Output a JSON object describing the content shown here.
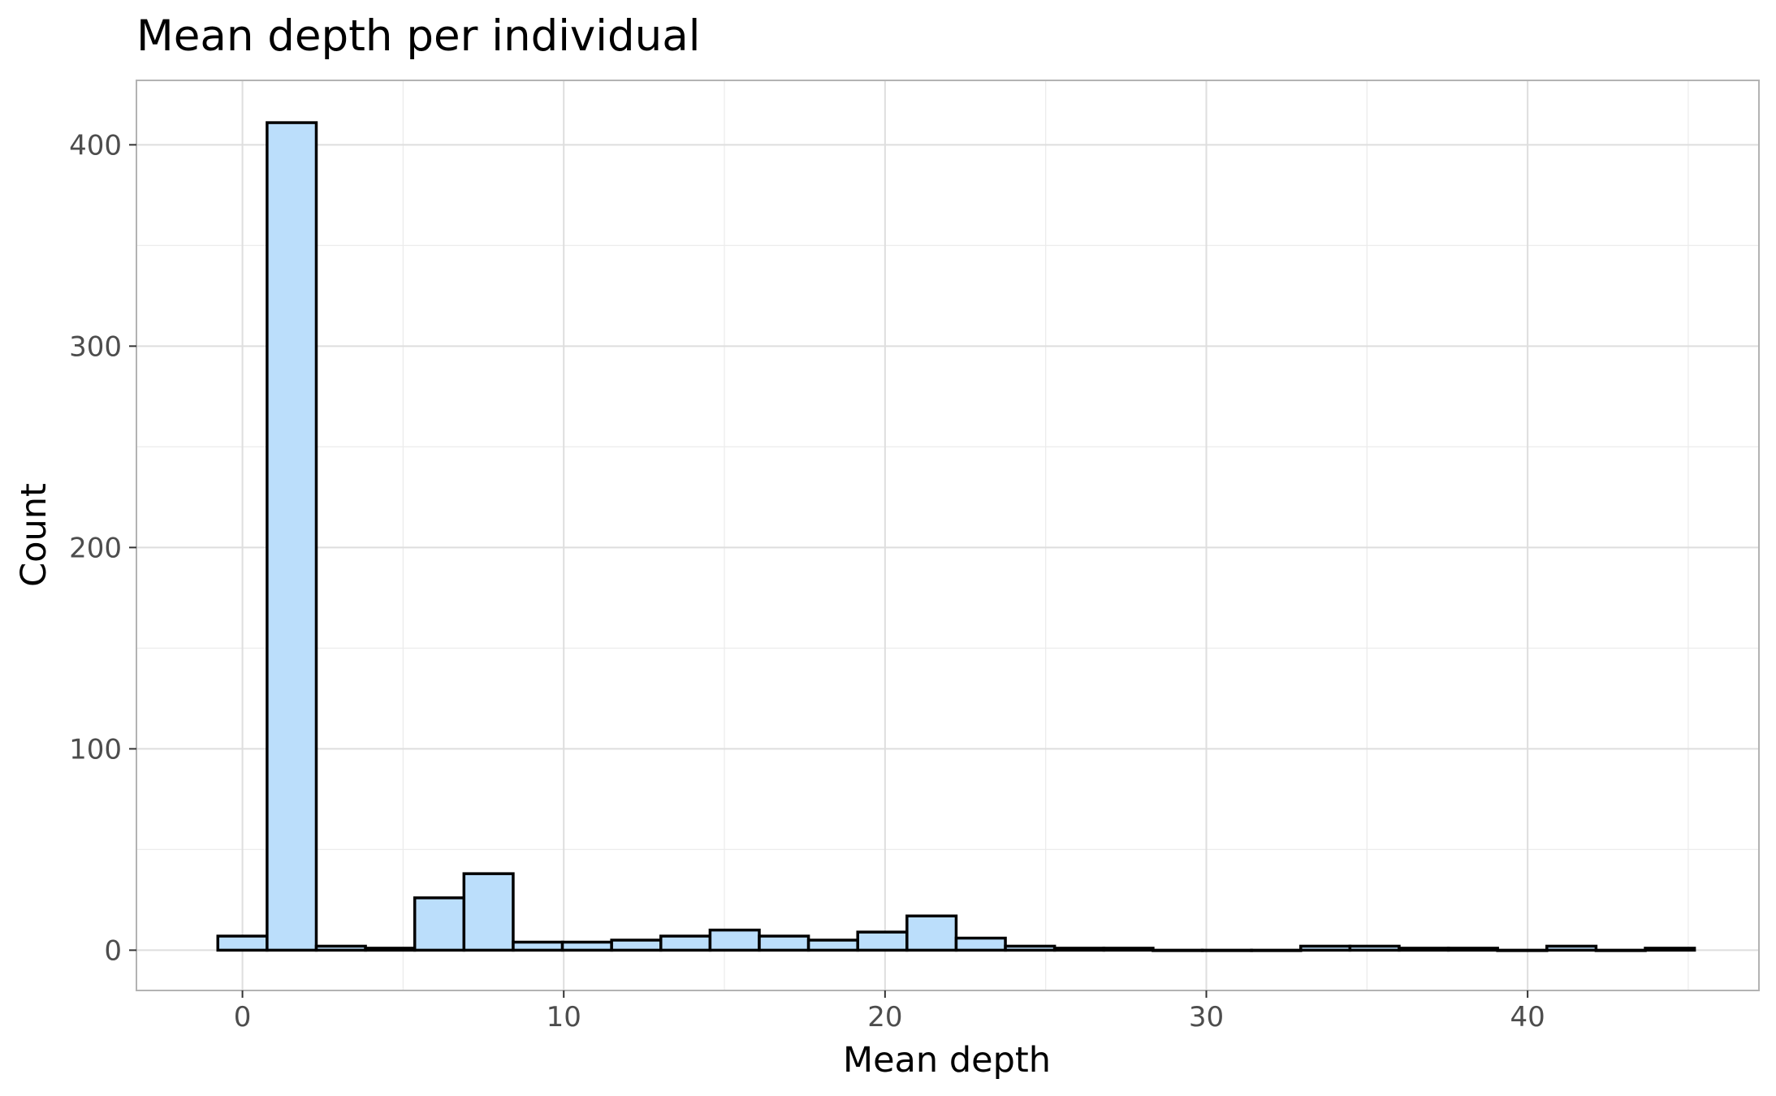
{
  "chart_data": {
    "type": "bar",
    "title": "Mean depth per individual",
    "xlabel": "Mean depth",
    "ylabel": "Count",
    "xlim": [
      -3.3,
      47.2
    ],
    "ylim": [
      -20,
      432
    ],
    "x_ticks": [
      0,
      10,
      20,
      30,
      40
    ],
    "y_ticks": [
      0,
      100,
      200,
      300,
      400
    ],
    "grid": true,
    "bin_width": 1.532,
    "bin_start": -0.766,
    "values": [
      7,
      411,
      2,
      1,
      26,
      38,
      4,
      4,
      5,
      7,
      10,
      7,
      5,
      9,
      17,
      6,
      2,
      1,
      1,
      0,
      0,
      0,
      2,
      2,
      1,
      1,
      0,
      2,
      0,
      1
    ],
    "colors": {
      "fill": "#bbdefb",
      "stroke": "#000000",
      "panel_border": "#b3b3b3",
      "grid_major": "#dedede",
      "grid_minor": "#ececec"
    }
  }
}
